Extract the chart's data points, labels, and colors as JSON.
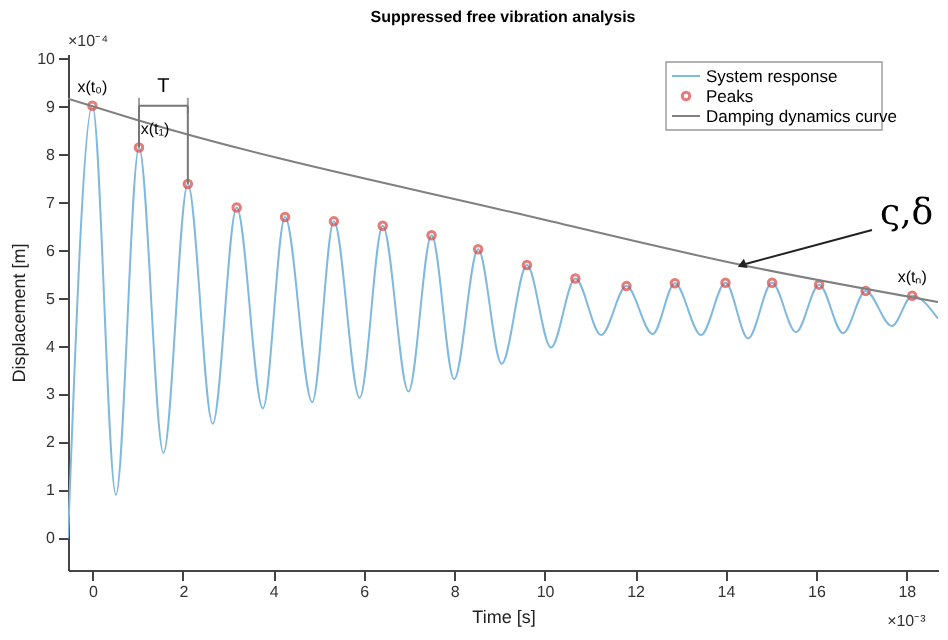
{
  "chart_data": {
    "type": "line",
    "title": "Suppressed free vibration analysis",
    "xlabel": "Time [s]",
    "ylabel": "Displacement [m]",
    "xlim": [
      -0.54,
      18.7
    ],
    "ylim": [
      -0.66,
      10.1
    ],
    "xticks": [
      0,
      2,
      4,
      6,
      8,
      10,
      12,
      14,
      16,
      18
    ],
    "yticks": [
      0,
      1,
      2,
      3,
      4,
      5,
      6,
      7,
      8,
      9,
      10
    ],
    "grid": false,
    "legend": "top right",
    "series": [
      {
        "name": "System response",
        "color": "#80b9de",
        "x": [
          -0.54,
          0,
          0.52,
          1.03,
          1.57,
          2.11,
          2.66,
          3.19,
          3.77,
          4.26,
          4.86,
          5.34,
          5.91,
          6.42,
          6.99,
          7.5,
          8.0,
          8.53,
          9.05,
          9.61,
          10.14,
          10.68,
          11.25,
          11.81,
          12.39,
          12.88,
          13.46,
          14.0,
          14.5,
          15.03,
          15.56,
          16.07,
          16.6,
          17.1,
          17.68,
          18.13,
          18.7
        ],
        "values": [
          0.0,
          9.02,
          0.91,
          8.15,
          1.78,
          7.39,
          2.39,
          6.9,
          2.71,
          6.7,
          2.84,
          6.61,
          2.93,
          6.52,
          3.06,
          6.32,
          3.32,
          6.03,
          3.64,
          5.7,
          3.98,
          5.42,
          4.24,
          5.26,
          4.26,
          5.32,
          4.24,
          5.33,
          4.17,
          5.33,
          4.3,
          5.29,
          4.28,
          5.16,
          4.43,
          5.06,
          4.58
        ]
      },
      {
        "name": "Peaks",
        "type": "scatter",
        "marker": "circle",
        "color": "#d9453f",
        "x": [
          0,
          1.03,
          2.11,
          3.19,
          4.26,
          5.34,
          6.42,
          7.5,
          8.53,
          9.61,
          10.68,
          11.81,
          12.88,
          14.0,
          15.03,
          16.07,
          17.1,
          18.13
        ],
        "values": [
          9.02,
          8.15,
          7.39,
          6.9,
          6.7,
          6.61,
          6.52,
          6.32,
          6.03,
          5.7,
          5.42,
          5.26,
          5.32,
          5.33,
          5.33,
          5.29,
          5.16,
          5.06
        ]
      },
      {
        "name": "Damping dynamics curve",
        "color": "#808080",
        "x": [
          -0.54,
          0.97,
          9.74,
          14.36,
          18.7
        ],
        "values": [
          9.17,
          8.73,
          6.7,
          5.7,
          4.93
        ]
      }
    ],
    "annotations": [
      "×10⁻⁴",
      "×10⁻³",
      {
        "text": "x(t₀)",
        "x": 0,
        "y": 9.02
      },
      {
        "text": "x(t₁)",
        "x": 1.03,
        "y": 8.15
      },
      {
        "text": "x(tₙ)",
        "x": 18.13,
        "y": 5.06
      },
      {
        "text": "T",
        "x": 2.11,
        "y": 7.39
      },
      {
        "text": "ς,δ",
        "x": 14.36,
        "y": 5.7
      }
    ]
  }
}
